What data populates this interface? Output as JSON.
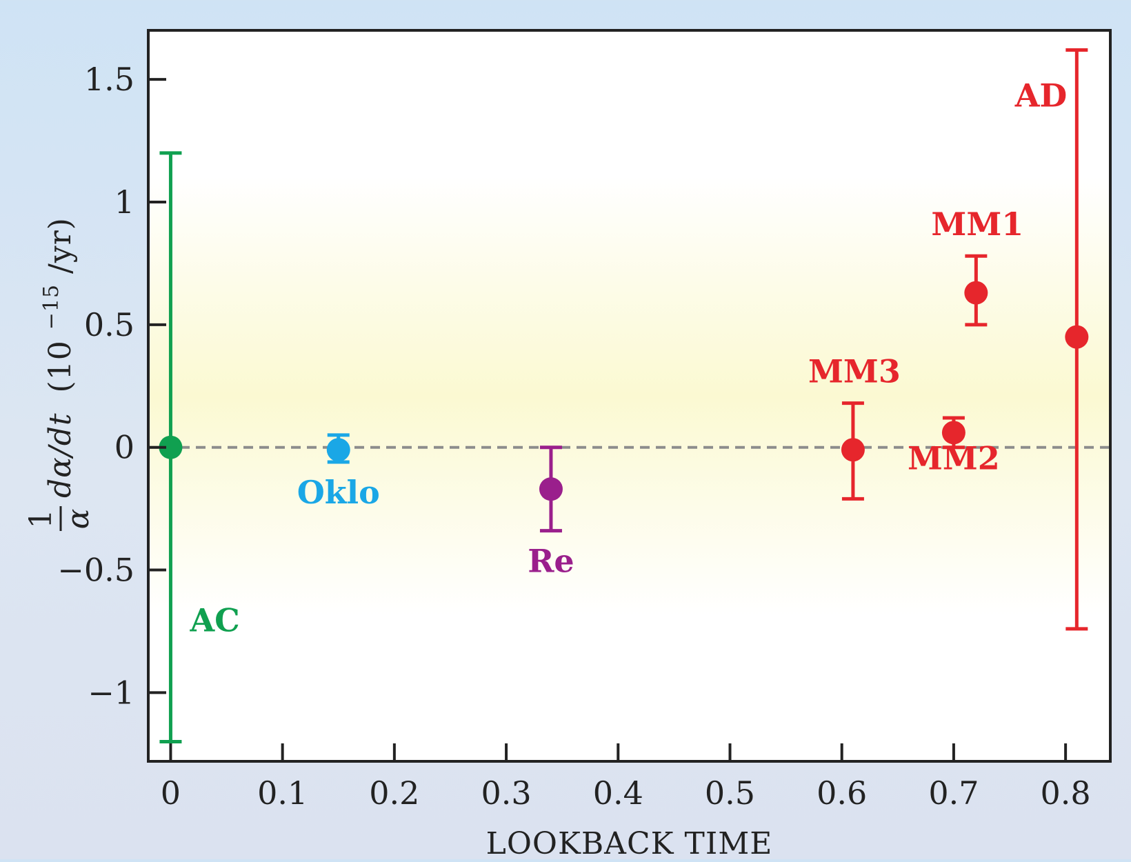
{
  "chart_data": {
    "type": "scatter",
    "xlabel": "LOOKBACK TIME",
    "ylabel_parts": {
      "frac_num": "1",
      "frac_den": "α",
      "expr": "dα/dt",
      "unit_open": "(10",
      "unit_exp": "−15",
      "unit_close": "/yr)"
    },
    "xlim": [
      -0.02,
      0.84
    ],
    "ylim": [
      -1.28,
      1.7
    ],
    "x_ticks": [
      0,
      0.1,
      0.2,
      0.3,
      0.4,
      0.5,
      0.6,
      0.7,
      0.8
    ],
    "x_tick_labels": [
      "0",
      "0.1",
      "0.2",
      "0.3",
      "0.4",
      "0.5",
      "0.6",
      "0.7",
      "0.8"
    ],
    "y_ticks": [
      -1,
      -0.5,
      0,
      0.5,
      1,
      1.5
    ],
    "y_tick_labels": [
      "−1",
      "−0.5",
      "0",
      "0.5",
      "1",
      "1.5"
    ],
    "reference_line": {
      "y": 0,
      "style": "dashed",
      "color": "#8c8c8c"
    },
    "series": [
      {
        "name": "AC",
        "color": "#10a050",
        "x": 0.0,
        "y": 0.0,
        "err_low": -1.2,
        "err_high": 1.2,
        "label_pos": "right-below"
      },
      {
        "name": "Oklo",
        "color": "#1aa7e6",
        "x": 0.15,
        "y": -0.01,
        "err_low": -0.06,
        "err_high": 0.05,
        "label_pos": "below"
      },
      {
        "name": "Re",
        "color": "#9a1f8c",
        "x": 0.34,
        "y": -0.17,
        "err_low": -0.34,
        "err_high": 0.0,
        "label_pos": "below"
      },
      {
        "name": "MM3",
        "color": "#e6262c",
        "x": 0.61,
        "y": -0.01,
        "err_low": -0.21,
        "err_high": 0.18,
        "label_pos": "above"
      },
      {
        "name": "MM2",
        "color": "#e6262c",
        "x": 0.7,
        "y": 0.06,
        "err_low": 0.0,
        "err_high": 0.12,
        "label_pos": "below"
      },
      {
        "name": "MM1",
        "color": "#e6262c",
        "x": 0.72,
        "y": 0.63,
        "err_low": 0.5,
        "err_high": 0.78,
        "label_pos": "above"
      },
      {
        "name": "AD",
        "color": "#e6262c",
        "x": 0.81,
        "y": 0.45,
        "err_low": -0.74,
        "err_high": 1.62,
        "label_pos": "left-top"
      }
    ]
  }
}
